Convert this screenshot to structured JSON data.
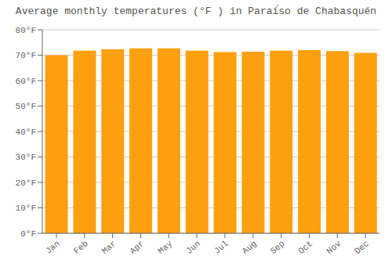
{
  "chart_data": {
    "type": "bar",
    "title": "Average monthly temperatures (°F ) in Paraí́so de Chabasquén",
    "categories": [
      "Jan",
      "Feb",
      "Mar",
      "Apr",
      "May",
      "Jun",
      "Jul",
      "Aug",
      "Sep",
      "Oct",
      "Nov",
      "Dec"
    ],
    "values": [
      70.0,
      71.8,
      72.3,
      72.7,
      72.7,
      71.8,
      71.2,
      71.4,
      71.8,
      72.0,
      71.6,
      70.9
    ],
    "color": "#FFA010",
    "ylim": [
      0,
      80
    ],
    "yticks": [
      {
        "value": 0,
        "label": "0°F"
      },
      {
        "value": 10,
        "label": "10°F"
      },
      {
        "value": 20,
        "label": "20°F"
      },
      {
        "value": 30,
        "label": "30°F"
      },
      {
        "value": 40,
        "label": "40°F"
      },
      {
        "value": 50,
        "label": "50°F"
      },
      {
        "value": 60,
        "label": "60°F"
      },
      {
        "value": 70,
        "label": "70°F"
      },
      {
        "value": 80,
        "label": "80°F"
      }
    ],
    "grid": true
  }
}
